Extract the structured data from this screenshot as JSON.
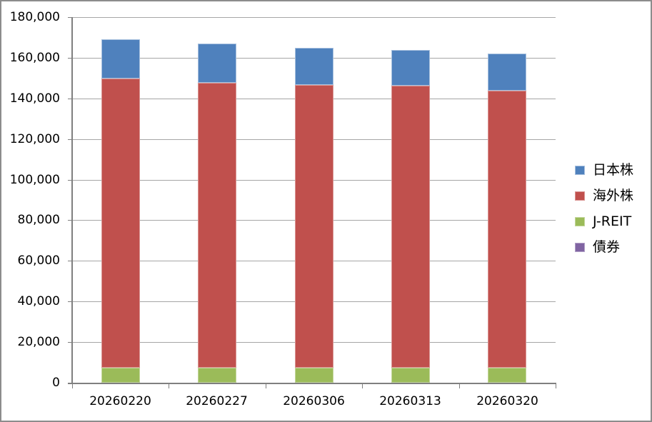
{
  "window": {
    "background": "#FFFFFF",
    "frame_border_color": "#8C8C8C"
  },
  "colors": {
    "grid": "#A6A6A6",
    "axis": "#7F7F7F",
    "text": "#000000"
  },
  "chart_data": {
    "type": "bar",
    "stacked": true,
    "title": "",
    "xlabel": "",
    "ylabel": "",
    "categories": [
      "20260220",
      "20260227",
      "20260306",
      "20260313",
      "20260320"
    ],
    "series": [
      {
        "name": "日本株",
        "slug": "japan-stocks",
        "color": "#4F81BD",
        "border_color": "#A7C0DE",
        "values": [
          19100,
          19400,
          18400,
          17700,
          18100
        ]
      },
      {
        "name": "海外株",
        "slug": "overseas-stocks",
        "color": "#C0504D",
        "border_color": "#DA9694",
        "values": [
          142500,
          140300,
          139100,
          138700,
          136400
        ]
      },
      {
        "name": "J-REIT",
        "slug": "j-reit",
        "color": "#9BBB59",
        "border_color": "#C3D69B",
        "values": [
          7400,
          7400,
          7400,
          7400,
          7400
        ]
      },
      {
        "name": "債券",
        "slug": "bonds",
        "color": "#8064A2",
        "border_color": "#B2A1C7",
        "values": [
          0,
          0,
          0,
          0,
          0
        ]
      }
    ],
    "stack_bottom_to_top": [
      "債券",
      "J-REIT",
      "海外株",
      "日本株"
    ],
    "totals": [
      169000,
      167100,
      164900,
      163800,
      161900
    ],
    "ylim": [
      0,
      180000
    ],
    "ytick_step": 20000,
    "ytick_labels": [
      "0",
      "20,000",
      "40,000",
      "60,000",
      "80,000",
      "100,000",
      "120,000",
      "140,000",
      "160,000",
      "180,000"
    ],
    "grid": true,
    "legend_position": "right",
    "legend_labels": [
      "日本株",
      "海外株",
      "J-REIT",
      "債券"
    ]
  }
}
